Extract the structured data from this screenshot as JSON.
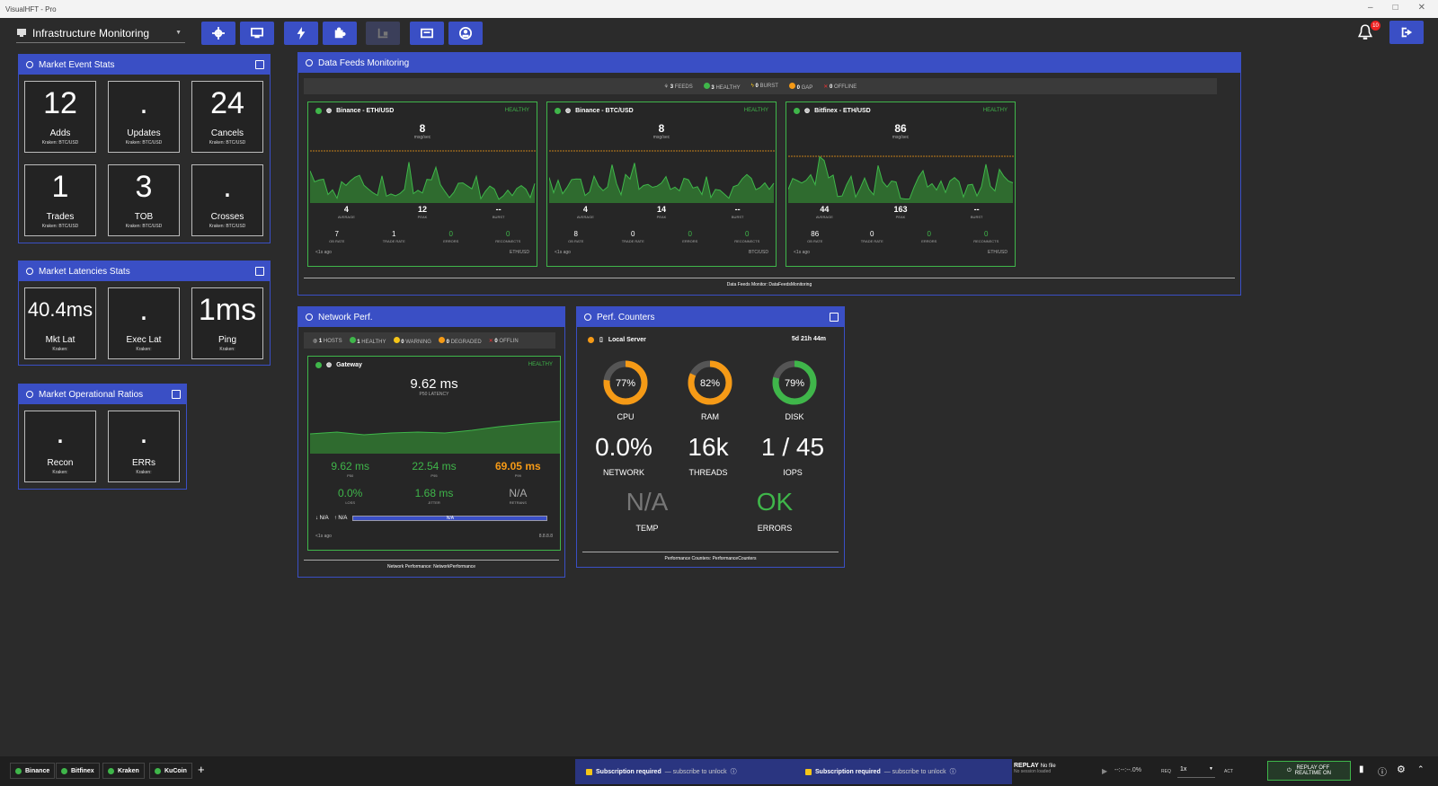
{
  "window": {
    "title": "VisualHFT - Pro"
  },
  "toolbar": {
    "layout": "Infrastructure Monitoring",
    "notifications": "10"
  },
  "market_event_stats": {
    "title": "Market Event Stats",
    "tiles": [
      {
        "value": "12",
        "label": "Adds",
        "sub": "Kraken: BTC/USD"
      },
      {
        "value": ".",
        "label": "Updates",
        "sub": "Kraken: BTC/USD"
      },
      {
        "value": "24",
        "label": "Cancels",
        "sub": "Kraken: BTC/USD"
      },
      {
        "value": "1",
        "label": "Trades",
        "sub": "Kraken: BTC/USD"
      },
      {
        "value": "3",
        "label": "TOB",
        "sub": "Kraken: BTC/USD"
      },
      {
        "value": ".",
        "label": "Crosses",
        "sub": "Kraken: BTC/USD"
      }
    ]
  },
  "market_latencies": {
    "title": "Market Latencies Stats",
    "tiles": [
      {
        "value": "40.4ms",
        "label": "Mkt Lat",
        "sub": "Kraken:"
      },
      {
        "value": ".",
        "label": "Exec Lat",
        "sub": "Kraken:"
      },
      {
        "value": "1ms",
        "label": "Ping",
        "sub": "Kraken:"
      }
    ]
  },
  "market_ratios": {
    "title": "Market Operational Ratios",
    "tiles": [
      {
        "value": ".",
        "label": "Recon",
        "sub": "Kraken:"
      },
      {
        "value": ".",
        "label": "ERRs",
        "sub": "Kraken:"
      }
    ]
  },
  "data_feeds": {
    "title": "Data Feeds Monitoring",
    "summary": {
      "feeds": "3",
      "feeds_l": "FEEDS",
      "healthy": "3",
      "healthy_l": "HEALTHY",
      "burst": "0",
      "burst_l": "BURST",
      "gap": "0",
      "gap_l": "GAP",
      "offline": "0",
      "offline_l": "OFFLINE"
    },
    "footer": "Data Feeds Monitor: DataFeedsMonitoring",
    "cards": [
      {
        "name": "Binance - ETH/USD",
        "status": "HEALTHY",
        "rate": "8",
        "unit": "msg/sec",
        "average": "4",
        "peak": "12",
        "burst": "--",
        "ob_rate": "7",
        "trade_rate": "1",
        "errors": "0",
        "reconnects": "0",
        "ago": "<1s ago",
        "symbol": "ETH/USD"
      },
      {
        "name": "Binance - BTC/USD",
        "status": "HEALTHY",
        "rate": "8",
        "unit": "msg/sec",
        "average": "4",
        "peak": "14",
        "burst": "--",
        "ob_rate": "8",
        "trade_rate": "0",
        "errors": "0",
        "reconnects": "0",
        "ago": "<1s ago",
        "symbol": "BTC/USD"
      },
      {
        "name": "Bitfinex - ETH/USD",
        "status": "HEALTHY",
        "rate": "86",
        "unit": "msg/sec",
        "average": "44",
        "peak": "163",
        "burst": "--",
        "ob_rate": "86",
        "trade_rate": "0",
        "errors": "0",
        "reconnects": "0",
        "ago": "<1s ago",
        "symbol": "ETH/USD"
      }
    ],
    "labels": {
      "average": "AVERAGE",
      "peak": "PEAK",
      "burst": "BURST",
      "ob_rate": "OB RATE",
      "trade_rate": "TRADE RATE",
      "errors": "ERRORS",
      "reconnects": "RECONNECTS"
    }
  },
  "network": {
    "title": "Network Perf.",
    "summary": {
      "hosts": "1",
      "hosts_l": "HOSTS",
      "healthy": "1",
      "healthy_l": "HEALTHY",
      "warning": "0",
      "warning_l": "WARNING",
      "degraded": "0",
      "degraded_l": "DEGRADED",
      "offline": "0",
      "offline_l": "OFFLIN"
    },
    "host": "Gateway",
    "status": "HEALTHY",
    "latency": "9.62 ms",
    "latency_l": "P50 LATENCY",
    "p50": "9.62 ms",
    "p95": "22.54 ms",
    "p99": "69.05 ms",
    "loss": "0.0%",
    "jitter": "1.68 ms",
    "retrans": "N/A",
    "p50_l": "P50",
    "p95_l": "P95",
    "p99_l": "P99",
    "loss_l": "LOSS",
    "jitter_l": "JITTER",
    "retrans_l": "RETRANS",
    "down": "N/A",
    "up": "N/A",
    "bar": "N/A",
    "ago": "<1s ago",
    "ip": "8.8.8.8",
    "footer": "Network Performance: NetworkPerformance"
  },
  "perf": {
    "title": "Perf. Counters",
    "server": "Local Server",
    "uptime": "5d 21h 44m",
    "cpu": 77,
    "ram": 82,
    "disk": 79,
    "cpu_t": "77%",
    "ram_t": "82%",
    "disk_t": "79%",
    "cpu_l": "CPU",
    "ram_l": "RAM",
    "disk_l": "DISK",
    "network": "0.0%",
    "threads": "16k",
    "iops": "1 / 45",
    "network_l": "NETWORK",
    "threads_l": "THREADS",
    "iops_l": "IOPS",
    "temp": "N/A",
    "errors": "OK",
    "temp_l": "TEMP",
    "errors_l": "ERRORS",
    "footer": "Performance Counters: PerformanceCounters"
  },
  "bottom": {
    "tabs": [
      "Binance",
      "Bitfinex",
      "Kraken",
      "KuCoin"
    ],
    "add": "+",
    "sub_required": "Subscription required",
    "sub_unlock": "— subscribe to unlock",
    "replay": "REPLAY",
    "nofile": "No file",
    "nosession": "No session loaded",
    "time": "--:--:--.0%",
    "req": "REQ",
    "speed": "1x",
    "act": "ACT",
    "rt1": "REPLAY OFF",
    "rt2": "REALTIME ON"
  },
  "colors": {
    "accent": "#3a4fc5",
    "healthy": "#3fb64a",
    "warning": "#f59a16"
  }
}
